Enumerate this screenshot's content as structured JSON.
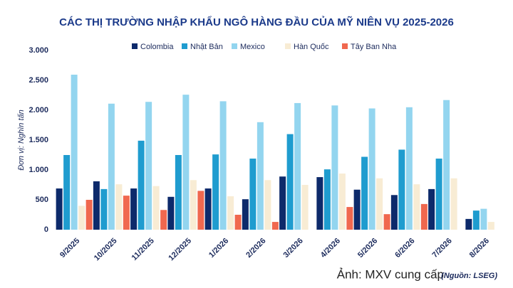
{
  "chart_data": {
    "type": "bar",
    "title": "CÁC THỊ TRƯỜNG NHẬP KHẨU NGÔ HÀNG ĐẦU CỦA MỸ NIÊN VỤ 2025-2026",
    "y_label": "Đơn vị: Nghìn tấn",
    "caption": "Ảnh: MXV cung cấp",
    "source": "(Nguồn: LSEG)",
    "categories": [
      "9/2025",
      "10/2025",
      "11/2025",
      "12/2025",
      "1/2026",
      "2/2026",
      "3/2026",
      "4/2026",
      "5/2026",
      "6/2026",
      "7/2026",
      "8/2026"
    ],
    "series": [
      {
        "name": "Colombia",
        "color": "#0d2a6b",
        "values": [
          690,
          810,
          690,
          550,
          690,
          510,
          890,
          880,
          670,
          580,
          680,
          180
        ]
      },
      {
        "name": "Nhật Bản",
        "color": "#1f9ccf",
        "values": [
          1250,
          680,
          1490,
          1250,
          1260,
          1190,
          1600,
          1010,
          1220,
          1340,
          1190,
          320
        ]
      },
      {
        "name": "Mexico",
        "color": "#93d5ef",
        "values": [
          2595,
          2110,
          2140,
          2260,
          2150,
          1800,
          2120,
          2080,
          2030,
          2050,
          2170,
          350
        ]
      },
      {
        "name": "Hàn Quốc",
        "color": "#f8ecd4",
        "values": [
          400,
          760,
          730,
          830,
          560,
          830,
          750,
          940,
          860,
          760,
          860,
          130
        ]
      },
      {
        "name": "Tây Ban Nha",
        "color": "#f0684f",
        "values": [
          500,
          570,
          330,
          650,
          250,
          130,
          null,
          380,
          260,
          430,
          null,
          null
        ]
      }
    ],
    "ylim": [
      0,
      3000
    ],
    "yticks": [
      0,
      500,
      {
        "value": 1000,
        "label": "1.000"
      },
      {
        "value": 1500,
        "label": "1.500"
      },
      {
        "value": 2000,
        "label": "2.000"
      },
      {
        "value": 2500,
        "label": "2.500"
      },
      {
        "value": 3000,
        "label": "3.000"
      }
    ],
    "legend": "top"
  }
}
